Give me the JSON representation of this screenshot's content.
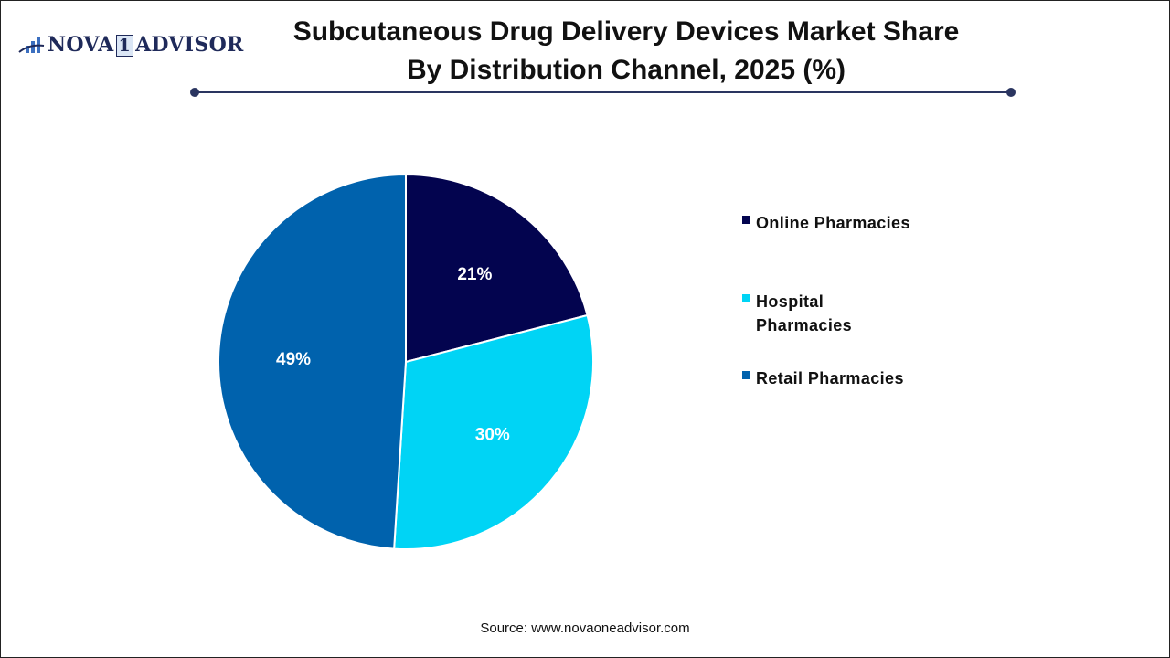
{
  "logo": {
    "text": "NOVA 1 ADVISOR"
  },
  "chart_data": {
    "type": "pie",
    "title": "Subcutaneous Drug Delivery Devices Market Share By Distribution Channel, 2025 (%)",
    "categories": [
      "Online Pharmacies",
      "Hospital Pharmacies",
      "Retail Pharmacies"
    ],
    "values": [
      21,
      30,
      49
    ],
    "data_labels": [
      "21%",
      "30%",
      "49%"
    ],
    "colors": [
      "#03044f",
      "#00d4f5",
      "#0062ad"
    ],
    "start_angle": "top, clockwise",
    "legend_position": "right"
  },
  "legend": [
    "Online Pharmacies",
    "Hospital\nPharmacies",
    "Retail Pharmacies"
  ],
  "source": "Source: www.novaoneadvisor.com"
}
